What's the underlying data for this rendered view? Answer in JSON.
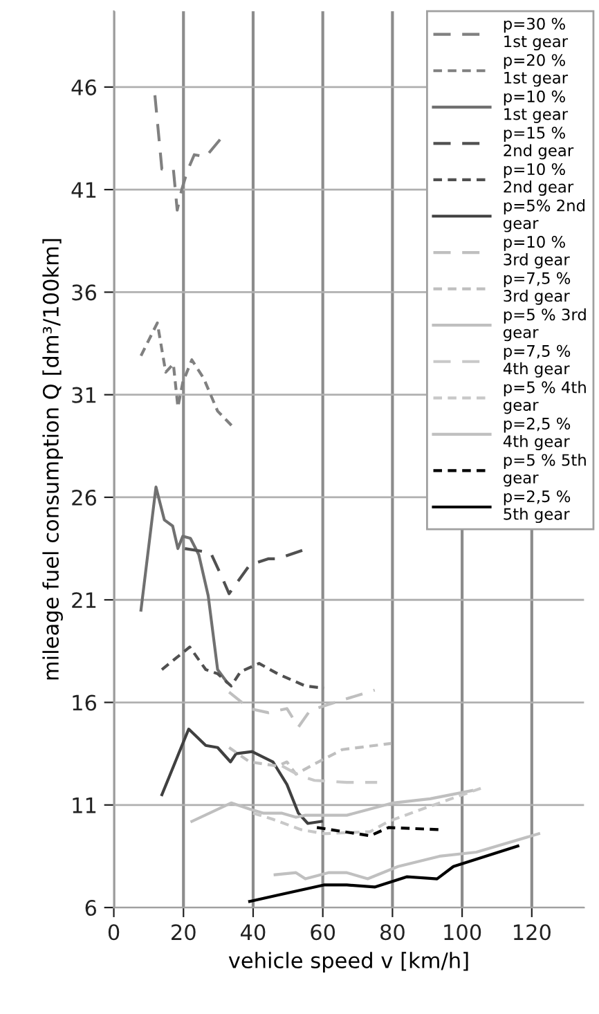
{
  "chart_data": {
    "type": "line",
    "xlabel": "vehicle speed v [km/h]",
    "ylabel": "mileage fuel consumption Q [dm³/100km]",
    "xlim": [
      0,
      135
    ],
    "xticks": [
      0,
      20,
      40,
      60,
      80,
      100,
      120
    ],
    "ylim": [
      6,
      49.7
    ],
    "yticks": [
      6,
      11,
      16,
      21,
      26,
      31,
      36,
      41,
      46
    ],
    "grid": true,
    "legend": "top right",
    "marker": "none",
    "series": [
      {
        "name": "p=30 %\n1st gear",
        "color": "#808080",
        "line_style": "dashed",
        "x": [
          11.8,
          13.8,
          17.1,
          18.2,
          19.5,
          21.1,
          23.1,
          26.4,
          30.8
        ],
        "values": [
          45.6,
          42.0,
          42.0,
          40.0,
          41.0,
          41.9,
          42.7,
          42.6,
          43.5
        ]
      },
      {
        "name": "p=20 %\n1st gear",
        "color": "#808080",
        "line_style": "dotted",
        "x": [
          7.8,
          12.5,
          14.9,
          17.1,
          18.4,
          19.8,
          22.4,
          25.8,
          29.8,
          34.4
        ],
        "values": [
          32.9,
          34.5,
          32.1,
          32.5,
          30.4,
          31.6,
          32.7,
          31.8,
          30.2,
          29.4
        ]
      },
      {
        "name": "p=10 %\n1st gear",
        "color": "#707070",
        "line_style": "solid",
        "x": [
          7.8,
          12.1,
          14.5,
          16.9,
          18.4,
          19.8,
          22.0,
          24.4,
          27.1,
          29.8,
          32.4
        ],
        "values": [
          20.5,
          26.5,
          24.9,
          24.6,
          23.5,
          24.1,
          24.0,
          23.2,
          21.2,
          17.6,
          17.0
        ]
      },
      {
        "name": "p=15 %\n2nd gear",
        "color": "#505050",
        "line_style": "dashed",
        "x": [
          20.4,
          27.8,
          30.8,
          33.1,
          39.0,
          44.3,
          47.0,
          55.7
        ],
        "values": [
          23.5,
          23.3,
          22.2,
          21.3,
          22.7,
          23.0,
          23.0,
          23.5
        ]
      },
      {
        "name": "p=10 %\n2nd gear",
        "color": "#505050",
        "line_style": "dotted",
        "x": [
          13.8,
          21.8,
          26.4,
          29.8,
          33.7,
          36.4,
          41.7,
          47.0,
          55.0,
          60.3
        ],
        "values": [
          17.6,
          18.7,
          17.6,
          17.4,
          16.8,
          17.5,
          17.9,
          17.4,
          16.8,
          16.7
        ]
      },
      {
        "name": "p=5% 2nd\ngear",
        "color": "#404040",
        "line_style": "solid",
        "x": [
          13.8,
          21.5,
          26.4,
          29.8,
          33.5,
          35.1,
          39.7,
          45.7,
          49.7,
          53.0,
          55.7,
          59.6
        ],
        "values": [
          11.5,
          14.7,
          13.9,
          13.8,
          13.1,
          13.5,
          13.6,
          13.1,
          12.0,
          10.6,
          10.1,
          10.2
        ]
      },
      {
        "name": "p=10 %\n3rd gear",
        "color": "#bfbfbf",
        "line_style": "dashed",
        "x": [
          33.1,
          39.0,
          44.4,
          49.7,
          53.0,
          56.3,
          61.6,
          74.9
        ],
        "values": [
          16.5,
          15.7,
          15.5,
          15.7,
          14.8,
          15.6,
          15.9,
          16.6
        ]
      },
      {
        "name": "p=7,5 %\n3rd gear",
        "color": "#bfbfbf",
        "line_style": "dotted",
        "x": [
          33.1,
          39.0,
          47.0,
          49.7,
          52.3,
          57.6,
          65.6,
          79.6
        ],
        "values": [
          13.8,
          13.1,
          12.9,
          13.1,
          12.5,
          13.0,
          13.7,
          14.0
        ]
      },
      {
        "name": "p=5 % 3rd\ngear",
        "color": "#bfbfbf",
        "line_style": "solid",
        "x": [
          22.4,
          33.7,
          39.0,
          43.0,
          48.3,
          52.3,
          55.0,
          66.9,
          80.2,
          90.8,
          102.8
        ],
        "values": [
          10.2,
          11.1,
          10.8,
          10.6,
          10.6,
          10.4,
          10.5,
          10.5,
          11.1,
          11.3,
          11.7
        ]
      },
      {
        "name": "p=7,5 %\n4th gear",
        "color": "#c8c8c8",
        "line_style": "dashed",
        "x": [
          48.3,
          53.7,
          57.6,
          66.9,
          75.6
        ],
        "values": [
          12.9,
          12.4,
          12.2,
          12.1,
          12.1
        ]
      },
      {
        "name": "p=5 % 4th\ngear",
        "color": "#c8c8c8",
        "line_style": "dotted",
        "x": [
          40.0,
          45.7,
          53.7,
          60.3,
          73.6,
          78.9,
          86.9,
          106.8
        ],
        "values": [
          10.6,
          10.3,
          9.8,
          9.6,
          9.7,
          10.2,
          10.7,
          11.9
        ]
      },
      {
        "name": "p=2,5 %\n4th gear",
        "color": "#c0c0c0",
        "line_style": "solid",
        "x": [
          46.3,
          52.3,
          55.0,
          61.6,
          66.9,
          72.9,
          81.6,
          93.5,
          104.1,
          122.0
        ],
        "values": [
          7.6,
          7.7,
          7.4,
          7.7,
          7.7,
          7.4,
          8.0,
          8.5,
          8.7,
          9.6
        ]
      },
      {
        "name": "p=5 % 5th\ngear",
        "color": "#000000",
        "line_style": "dotted",
        "x": [
          58.3,
          73.6,
          78.9,
          93.5
        ],
        "values": [
          9.9,
          9.5,
          9.9,
          9.8
        ]
      },
      {
        "name": "p=2,5 %\n5th gear",
        "color": "#000000",
        "line_style": "solid",
        "x": [
          39.0,
          47.0,
          60.3,
          66.9,
          74.9,
          84.2,
          92.8,
          97.5,
          116.0
        ],
        "values": [
          6.3,
          6.6,
          7.1,
          7.1,
          7.0,
          7.5,
          7.4,
          8.0,
          9.0
        ]
      }
    ]
  }
}
